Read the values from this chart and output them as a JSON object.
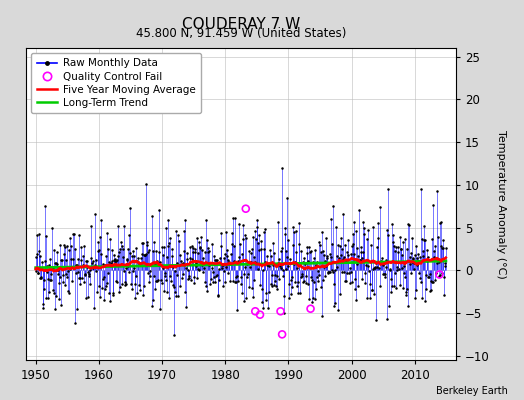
{
  "title": "COUDERAY 7 W",
  "subtitle": "45.800 N, 91.459 W (United States)",
  "ylabel": "Temperature Anomaly (°C)",
  "credit": "Berkeley Earth",
  "xlim": [
    1948.5,
    2016.5
  ],
  "ylim": [
    -10.5,
    26
  ],
  "yticks": [
    -10,
    -5,
    0,
    5,
    10,
    15,
    20,
    25
  ],
  "xticks": [
    1950,
    1960,
    1970,
    1980,
    1990,
    2000,
    2010
  ],
  "start_year": 1950,
  "end_year": 2015,
  "background_color": "#d9d9d9",
  "plot_bg_color": "#ffffff",
  "raw_line_color": "#0000ff",
  "raw_dot_color": "#000000",
  "moving_avg_color": "#ff0000",
  "trend_color": "#00cc00",
  "qc_fail_color": "#ff00ff",
  "seed": 42,
  "trend_slope": 0.012,
  "trend_intercept": 0.3,
  "noise_std": 2.5,
  "qc_fail_times": [
    1983.25,
    1984.75,
    1985.5,
    1988.75,
    1989.0,
    1993.5,
    2013.9
  ],
  "qc_fail_values": [
    7.2,
    -4.8,
    -5.2,
    -4.8,
    -7.5,
    -4.5,
    -0.5
  ]
}
